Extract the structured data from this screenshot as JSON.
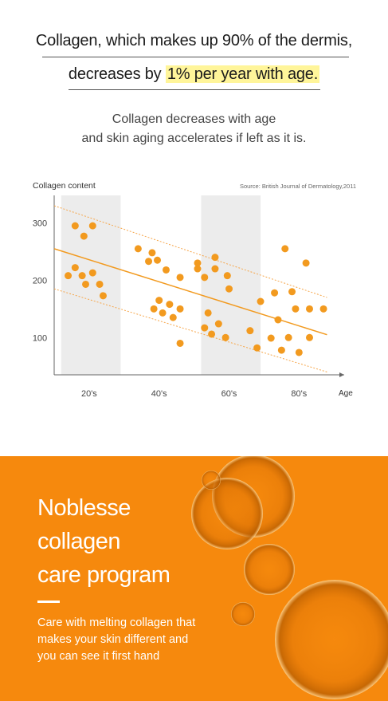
{
  "headline": {
    "line1": "Collagen, which makes up 90% of the dermis,",
    "line2_prefix": "decreases by ",
    "line2_highlight": "1% per year with age."
  },
  "subtitle": {
    "line1": "Collagen decreases with age",
    "line2": "and skin aging accelerates if left as it is."
  },
  "chart_data": {
    "type": "scatter",
    "ylabel": "Collagen content",
    "xlabel": "Age",
    "source": "Source: British Journal of Dermatology,2011",
    "ylim": [
      35,
      355
    ],
    "xlim": [
      10,
      92
    ],
    "y_ticks": [
      100,
      200,
      300
    ],
    "x_tick_labels": [
      {
        "x": 20,
        "label": "20's"
      },
      {
        "x": 40,
        "label": "40's"
      },
      {
        "x": 60,
        "label": "60's"
      },
      {
        "x": 80,
        "label": "80's"
      }
    ],
    "shaded_bands": [
      [
        12,
        29
      ],
      [
        52,
        69
      ]
    ],
    "trend_line": [
      [
        10,
        255
      ],
      [
        88,
        105
      ]
    ],
    "band_upper": [
      [
        10,
        330
      ],
      [
        88,
        170
      ]
    ],
    "band_lower": [
      [
        10,
        185
      ],
      [
        88,
        40
      ]
    ],
    "series_color": "#f29a1f",
    "points": [
      {
        "x": 14,
        "y": 208
      },
      {
        "x": 16,
        "y": 222
      },
      {
        "x": 16,
        "y": 295
      },
      {
        "x": 18,
        "y": 208
      },
      {
        "x": 18.5,
        "y": 277
      },
      {
        "x": 19,
        "y": 193
      },
      {
        "x": 21,
        "y": 295
      },
      {
        "x": 21,
        "y": 213
      },
      {
        "x": 23,
        "y": 193
      },
      {
        "x": 24,
        "y": 173
      },
      {
        "x": 34,
        "y": 255
      },
      {
        "x": 37,
        "y": 233
      },
      {
        "x": 38,
        "y": 248
      },
      {
        "x": 38.5,
        "y": 150
      },
      {
        "x": 39.5,
        "y": 235
      },
      {
        "x": 40,
        "y": 165
      },
      {
        "x": 41,
        "y": 143
      },
      {
        "x": 42,
        "y": 218
      },
      {
        "x": 43,
        "y": 158
      },
      {
        "x": 44,
        "y": 135
      },
      {
        "x": 46,
        "y": 205
      },
      {
        "x": 46,
        "y": 150
      },
      {
        "x": 46,
        "y": 90
      },
      {
        "x": 51,
        "y": 220
      },
      {
        "x": 51,
        "y": 230
      },
      {
        "x": 53,
        "y": 205
      },
      {
        "x": 53,
        "y": 117
      },
      {
        "x": 54,
        "y": 143
      },
      {
        "x": 55,
        "y": 106
      },
      {
        "x": 56,
        "y": 240
      },
      {
        "x": 56,
        "y": 220
      },
      {
        "x": 57,
        "y": 124
      },
      {
        "x": 59,
        "y": 100
      },
      {
        "x": 59.5,
        "y": 208
      },
      {
        "x": 60,
        "y": 185
      },
      {
        "x": 66,
        "y": 112
      },
      {
        "x": 68,
        "y": 82
      },
      {
        "x": 69,
        "y": 163
      },
      {
        "x": 72,
        "y": 99
      },
      {
        "x": 73,
        "y": 178
      },
      {
        "x": 74,
        "y": 131
      },
      {
        "x": 75,
        "y": 78
      },
      {
        "x": 76,
        "y": 255
      },
      {
        "x": 77,
        "y": 100
      },
      {
        "x": 78,
        "y": 180
      },
      {
        "x": 79,
        "y": 150
      },
      {
        "x": 80,
        "y": 74
      },
      {
        "x": 82,
        "y": 230
      },
      {
        "x": 83,
        "y": 150
      },
      {
        "x": 83,
        "y": 100
      },
      {
        "x": 87,
        "y": 150
      }
    ]
  },
  "promo": {
    "title_line1": "Noblesse",
    "title_line2": "collagen",
    "title_line3": "care program",
    "text_line1": "Care with melting collagen that",
    "text_line2": "makes your skin different and",
    "text_line3": "you can see it first hand",
    "background": "#f6890d"
  }
}
